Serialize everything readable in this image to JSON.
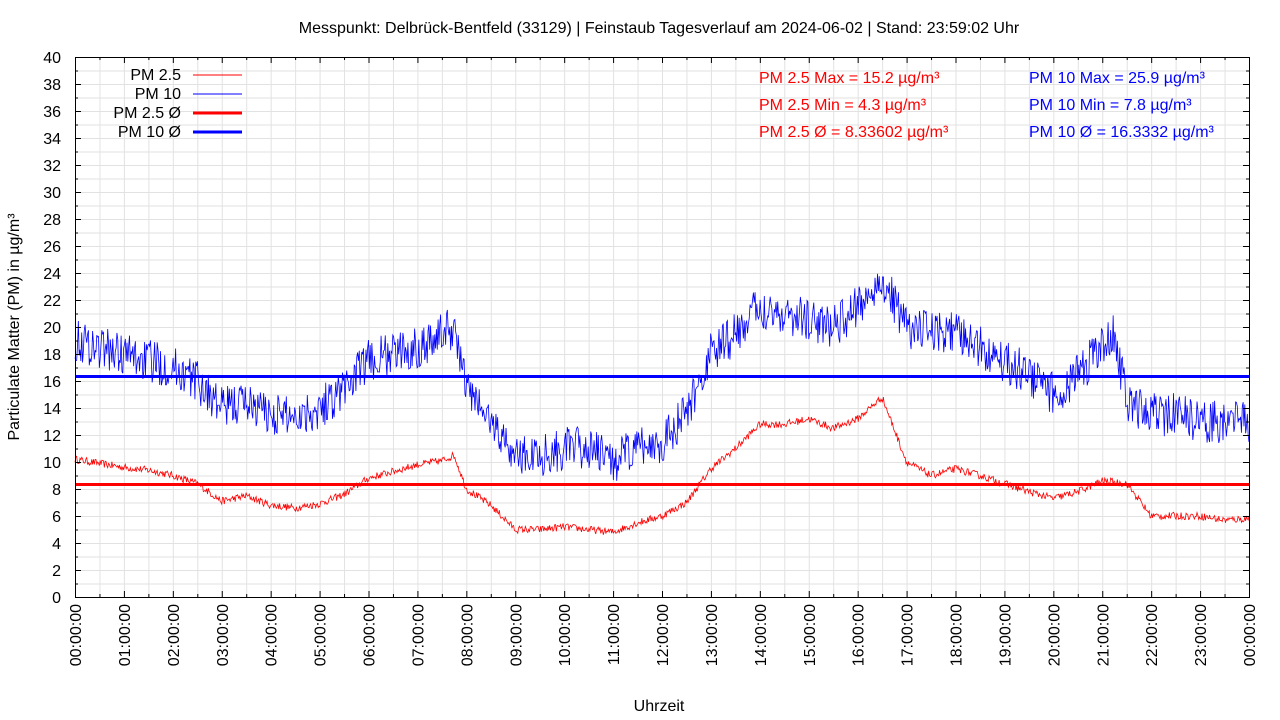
{
  "chart_data": {
    "type": "line",
    "title": "Messpunkt: Delbrück-Bentfeld (33129) | Feinstaub Tagesverlauf am 2024-06-02 | Stand: 23:59:02 Uhr",
    "xlabel": "Uhrzeit",
    "ylabel": "Particulate Matter (PM) in µg/m³",
    "xlim": [
      "00:00:00",
      "24:00:00"
    ],
    "ylim": [
      0,
      40
    ],
    "grid": true,
    "legend_position": "top-left",
    "x_ticks": [
      "00:00:00",
      "01:00:00",
      "02:00:00",
      "03:00:00",
      "04:00:00",
      "05:00:00",
      "06:00:00",
      "07:00:00",
      "08:00:00",
      "09:00:00",
      "10:00:00",
      "11:00:00",
      "12:00:00",
      "13:00:00",
      "14:00:00",
      "15:00:00",
      "16:00:00",
      "17:00:00",
      "18:00:00",
      "19:00:00",
      "20:00:00",
      "21:00:00",
      "22:00:00",
      "23:00:00",
      "00:00:00"
    ],
    "y_ticks": [
      0,
      2,
      4,
      6,
      8,
      10,
      12,
      14,
      16,
      18,
      20,
      22,
      24,
      26,
      28,
      30,
      32,
      34,
      36,
      38,
      40
    ],
    "x": [
      "00:00",
      "00:30",
      "01:00",
      "01:30",
      "02:00",
      "02:30",
      "03:00",
      "03:30",
      "04:00",
      "04:30",
      "05:00",
      "05:30",
      "06:00",
      "06:30",
      "07:00",
      "07:30",
      "07:45",
      "08:00",
      "08:30",
      "09:00",
      "09:30",
      "10:00",
      "10:30",
      "11:00",
      "11:30",
      "12:00",
      "12:30",
      "13:00",
      "13:30",
      "14:00",
      "14:30",
      "15:00",
      "15:30",
      "16:00",
      "16:30",
      "17:00",
      "17:30",
      "18:00",
      "18:30",
      "19:00",
      "19:30",
      "20:00",
      "20:30",
      "21:00",
      "21:15",
      "21:30",
      "22:00",
      "22:30",
      "23:00",
      "23:30",
      "24:00"
    ],
    "series": [
      {
        "name": "PM 2.5",
        "color": "#ff0000",
        "style": "thin",
        "values": [
          10.2,
          9.9,
          9.6,
          9.4,
          9.0,
          8.4,
          7.1,
          7.5,
          6.8,
          6.6,
          6.9,
          7.6,
          8.8,
          9.3,
          9.8,
          10.1,
          10.5,
          8.0,
          6.8,
          5.0,
          5.0,
          5.2,
          5.0,
          4.8,
          5.5,
          6.0,
          7.0,
          9.5,
          11.0,
          12.8,
          12.8,
          13.2,
          12.5,
          13.2,
          14.8,
          10.0,
          9.0,
          9.5,
          9.0,
          8.4,
          7.8,
          7.3,
          7.8,
          8.6,
          8.5,
          8.4,
          6.0,
          6.0,
          6.0,
          5.7,
          5.8
        ]
      },
      {
        "name": "PM 10",
        "color": "#0000ff",
        "style": "thin",
        "values": [
          19.0,
          18.5,
          18.0,
          17.5,
          17.0,
          16.0,
          14.0,
          14.5,
          13.5,
          13.5,
          14.0,
          15.5,
          17.5,
          18.0,
          18.5,
          19.5,
          20.0,
          15.5,
          13.0,
          10.5,
          10.5,
          11.0,
          11.0,
          10.0,
          11.0,
          11.5,
          13.5,
          18.0,
          19.5,
          21.5,
          21.0,
          20.5,
          20.0,
          21.5,
          23.5,
          20.0,
          19.5,
          19.5,
          18.5,
          17.5,
          16.5,
          15.0,
          16.5,
          18.5,
          19.5,
          14.5,
          13.5,
          13.5,
          13.0,
          13.0,
          13.0
        ]
      },
      {
        "name": "PM 2.5 Ø",
        "color": "#ff0000",
        "style": "thick",
        "constant": 8.33602
      },
      {
        "name": "PM 10 Ø",
        "color": "#0000ff",
        "style": "thick",
        "constant": 16.3332
      }
    ],
    "annotations": [
      {
        "text": "PM 2.5 Max = 15.2 µg/m³",
        "color": "#ff0000"
      },
      {
        "text": "PM 2.5 Min = 4.3 µg/m³",
        "color": "#ff0000"
      },
      {
        "text": "PM 2.5 Ø = 8.33602 µg/m³",
        "color": "#ff0000"
      },
      {
        "text": "PM 10 Max = 25.9 µg/m³",
        "color": "#0000ff"
      },
      {
        "text": "PM 10 Min = 7.8 µg/m³",
        "color": "#0000ff"
      },
      {
        "text": "PM 10 Ø = 16.3332 µg/m³",
        "color": "#0000ff"
      }
    ]
  }
}
